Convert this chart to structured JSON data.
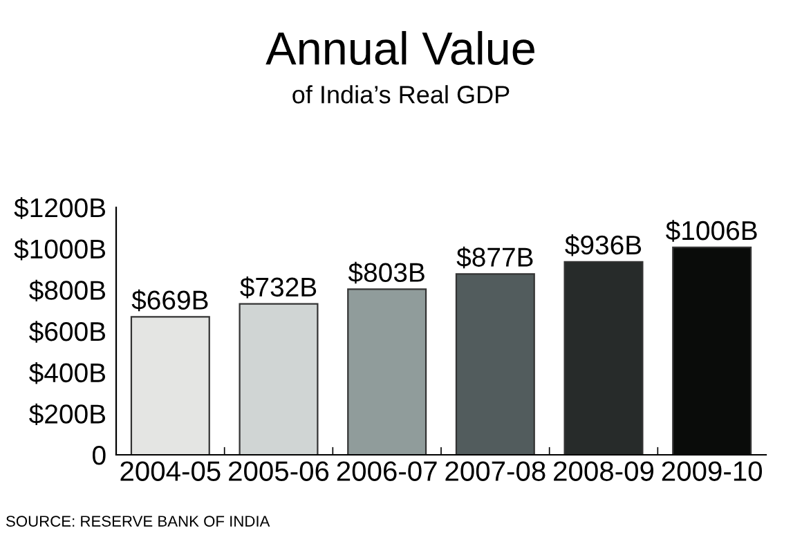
{
  "chart_data": {
    "type": "bar",
    "title": "Annual Value",
    "subtitle": "of India’s Real GDP",
    "categories": [
      "2004-05",
      "2005-06",
      "2006-07",
      "2007-08",
      "2008-09",
      "2009-10"
    ],
    "values": [
      669,
      732,
      803,
      877,
      936,
      1006
    ],
    "colors": [
      "#e4e5e3",
      "#d0d5d4",
      "#909c9b",
      "#525c5d",
      "#272b2a",
      "#0a0c0a"
    ],
    "value_labels": [
      "$669B",
      "$732B",
      "$803B",
      "$877B",
      "$936B",
      "$1006B"
    ],
    "ylim": [
      0,
      1200
    ],
    "yticks": [
      0,
      {
        "value": 200,
        "label": "$200B"
      },
      {
        "value": 400,
        "label": "$400B"
      },
      {
        "value": 600,
        "label": "$600B"
      },
      {
        "value": 800,
        "label": "$800B"
      },
      {
        "value": 1000,
        "label": "$1000B"
      },
      {
        "value": 1200,
        "label": "$1200B"
      }
    ],
    "grid": false,
    "legend": false,
    "annotations": [
      "SOURCE: RESERVE BANK OF INDIA"
    ]
  }
}
